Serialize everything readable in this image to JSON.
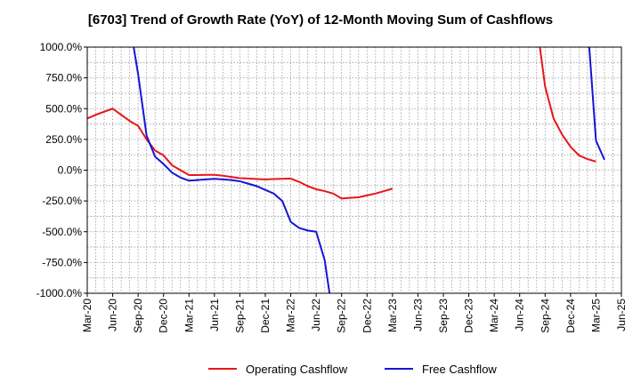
{
  "chart_data": {
    "type": "line",
    "title": "[6703]  Trend of Growth Rate (YoY) of 12-Month Moving Sum of Cashflows",
    "xlabel": "",
    "ylabel": "",
    "x_ticks": [
      "Mar-20",
      "Jun-20",
      "Sep-20",
      "Dec-20",
      "Mar-21",
      "Jun-21",
      "Sep-21",
      "Dec-21",
      "Mar-22",
      "Jun-22",
      "Sep-22",
      "Dec-22",
      "Mar-23",
      "Jun-23",
      "Sep-23",
      "Dec-23",
      "Mar-24",
      "Jun-24",
      "Sep-24",
      "Dec-24",
      "Mar-25",
      "Jun-25"
    ],
    "y_ticks": [
      "1000.0%",
      "750.0%",
      "500.0%",
      "250.0%",
      "0.0%",
      "-250.0%",
      "-500.0%",
      "-750.0%",
      "-1000.0%"
    ],
    "y_tick_values": [
      1000,
      750,
      500,
      250,
      0,
      -250,
      -500,
      -750,
      -1000
    ],
    "ylim": [
      -1000,
      1000
    ],
    "grid": true,
    "legend_position": "bottom-center",
    "series": [
      {
        "name": "Operating Cashflow",
        "color": "#e8161a",
        "segments": [
          {
            "x": [
              "Mar-20",
              "Apr-20",
              "May-20",
              "Jun-20",
              "Jul-20",
              "Aug-20",
              "Sep-20",
              "Oct-20",
              "Nov-20",
              "Dec-20",
              "Jan-21",
              "Feb-21",
              "Mar-21",
              "Apr-21",
              "May-21",
              "Jun-21",
              "Jul-21",
              "Aug-21",
              "Sep-21",
              "Oct-21",
              "Nov-21",
              "Dec-21",
              "Jan-22",
              "Feb-22",
              "Mar-22",
              "Apr-22",
              "May-22",
              "Jun-22",
              "Jul-22",
              "Aug-22",
              "Sep-22",
              "Oct-22",
              "Nov-22",
              "Dec-22",
              "Jan-23",
              "Feb-23",
              "Mar-23"
            ],
            "y": [
              420,
              450,
              475,
              500,
              450,
              400,
              360,
              250,
              160,
              120,
              40,
              0,
              -40,
              -40,
              -38,
              -38,
              -45,
              -55,
              -65,
              -68,
              -72,
              -75,
              -72,
              -70,
              -68,
              -95,
              -130,
              -155,
              -170,
              -190,
              -230,
              -225,
              -220,
              -205,
              -190,
              -170,
              -150
            ]
          },
          {
            "x": [
              "Aug-24",
              "Sep-24",
              "Oct-24",
              "Nov-24",
              "Dec-24",
              "Jan-25",
              "Feb-25",
              "Mar-25"
            ],
            "y": [
              1200,
              680,
              420,
              290,
              190,
              120,
              90,
              70
            ]
          }
        ]
      },
      {
        "name": "Free Cashflow",
        "color": "#1515d6",
        "segments": [
          {
            "x": [
              "Aug-20",
              "Sep-20",
              "Oct-20",
              "Nov-20",
              "Dec-20",
              "Jan-21",
              "Feb-21",
              "Mar-21",
              "Apr-21",
              "May-21",
              "Jun-21",
              "Jul-21",
              "Aug-21",
              "Sep-21",
              "Oct-21",
              "Nov-21",
              "Dec-21",
              "Jan-22",
              "Feb-22",
              "Mar-22",
              "Apr-22",
              "May-22",
              "Jun-22",
              "Jul-22",
              "Aug-22"
            ],
            "y": [
              1200,
              780,
              280,
              110,
              50,
              -20,
              -60,
              -85,
              -80,
              -75,
              -70,
              -75,
              -80,
              -90,
              -110,
              -130,
              -160,
              -190,
              -250,
              -420,
              -470,
              -490,
              -500,
              -730,
              -1200
            ]
          },
          {
            "x": [
              "Feb-25",
              "Mar-25",
              "Apr-25"
            ],
            "y": [
              1200,
              240,
              85
            ]
          }
        ]
      }
    ]
  }
}
